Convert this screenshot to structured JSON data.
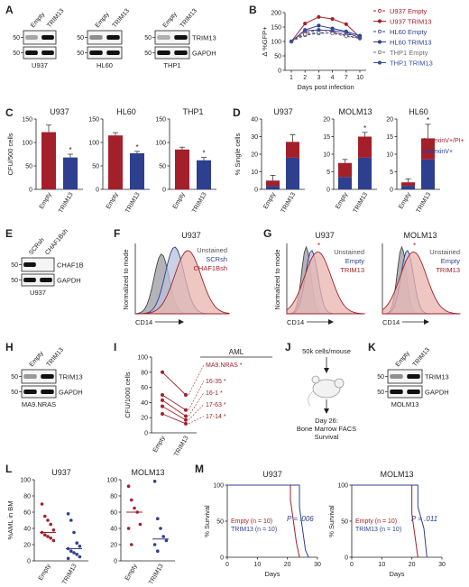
{
  "panel_letters": [
    "A",
    "B",
    "C",
    "D",
    "E",
    "F",
    "G",
    "H",
    "I",
    "J",
    "K",
    "L",
    "M"
  ],
  "colors": {
    "red": "#a3202a",
    "blue": "#2e3f8f",
    "gray": "#6e6e6e",
    "fill_red": "#e8b4ae",
    "fill_blue": "#b9c2dc",
    "fill_gray": "#9a9ba0"
  },
  "panel_a": {
    "blots": [
      {
        "cell_line": "U937",
        "lanes": [
          "Empty",
          "TRIM13"
        ],
        "markers": [
          "50",
          "50"
        ]
      },
      {
        "cell_line": "HL60",
        "lanes": [
          "Empty",
          "TRIM13"
        ],
        "markers": [
          "50",
          "50"
        ]
      },
      {
        "cell_line": "THP1",
        "lanes": [
          "Empty",
          "TRIM13"
        ],
        "markers": [
          "50",
          "50"
        ]
      }
    ],
    "proteins": [
      "TRIM13",
      "GAPDH"
    ]
  },
  "panel_e": {
    "cell_line": "U937",
    "lanes": [
      "SCRsh",
      "CHAF1Bsh"
    ],
    "markers": [
      "50",
      "50"
    ],
    "proteins": [
      "CHAF1B",
      "GAPDH"
    ]
  },
  "panel_h": {
    "cell_line": "MA9.NRAS",
    "lanes": [
      "Empty",
      "TRIM13"
    ],
    "markers": [
      "50",
      "50"
    ],
    "proteins": [
      "TRIM13",
      "GAPDH"
    ]
  },
  "panel_k": {
    "cell_line": "MOLM13",
    "lanes": [
      "Empty",
      "TRIM13"
    ],
    "markers": [
      "50",
      "50"
    ],
    "proteins": [
      "TRIM13",
      "GAPDH"
    ]
  },
  "panel_f": {
    "title": "U937",
    "xlabel": "CD14",
    "ylabel": "Normalized to mode",
    "legend": [
      "Unstained",
      "SCRsh",
      "CHAF1Bsh"
    ]
  },
  "panel_g": {
    "titles": [
      "U937",
      "MOLM13"
    ],
    "xlabel": "CD14",
    "ylabel": "Normalized to mode",
    "legend": [
      "Unstained",
      "Empty",
      "TRIM13"
    ],
    "star": "*"
  },
  "panel_j": {
    "text_top": "50k cells/mouse",
    "text_bottom": [
      "Day 26:",
      "Bone Marrow FACS",
      "Survival"
    ]
  },
  "chart_data": [
    {
      "panel": "B",
      "type": "line",
      "x": [
        "1",
        "2",
        "3",
        "4",
        "7",
        "10"
      ],
      "xlabel": "Days post infection",
      "ylabel": "Δ %GFP+",
      "ylim": [
        0,
        200
      ],
      "yticks": [
        "0",
        "50",
        "100",
        "150",
        "200"
      ],
      "legend_position": "right",
      "series": [
        {
          "name": "U937 Empty",
          "color": "#a3202a",
          "dashed": true,
          "values": [
            100,
            130,
            140,
            135,
            120,
            112
          ]
        },
        {
          "name": "U937 TRIM13",
          "color": "#a3202a",
          "dashed": false,
          "values": [
            100,
            162,
            185,
            178,
            160,
            115
          ]
        },
        {
          "name": "HL60 Empty",
          "color": "#2e3f8f",
          "dashed": true,
          "values": [
            100,
            122,
            128,
            130,
            125,
            118
          ]
        },
        {
          "name": "HL60 TRIM13",
          "color": "#2e3f8f",
          "dashed": false,
          "values": [
            100,
            140,
            155,
            145,
            135,
            120
          ]
        },
        {
          "name": "THP1 Empty",
          "color": "#6e6e6e",
          "dashed": true,
          "values": [
            100,
            125,
            132,
            128,
            118,
            110
          ]
        },
        {
          "name": "THP1 TRIM13",
          "color": "#3a4fa0",
          "dashed": false,
          "values": [
            100,
            138,
            140,
            138,
            132,
            112
          ]
        }
      ]
    },
    {
      "panel": "C",
      "type": "bar",
      "ylabel": "CFU/500 cells",
      "ylim": [
        0,
        150
      ],
      "yticks": [
        "0",
        "50",
        "100",
        "150"
      ],
      "subplots": [
        {
          "title": "U937",
          "categories": [
            "Empty",
            "TRIM13"
          ],
          "values": [
            122,
            68
          ],
          "err": [
            15,
            7
          ],
          "star": "*"
        },
        {
          "title": "HL60",
          "categories": [
            "Empty",
            "TRIM13"
          ],
          "values": [
            115,
            77
          ],
          "err": [
            6,
            4
          ],
          "star": "*"
        },
        {
          "title": "THP1",
          "categories": [
            "Empty",
            "TRIM13"
          ],
          "values": [
            85,
            62
          ],
          "err": [
            5,
            6
          ],
          "star": "*"
        }
      ]
    },
    {
      "panel": "D",
      "type": "bar",
      "stacked": true,
      "ylabel": "% Single cells",
      "legend": [
        "AnnexinV+/PI+",
        "AnnexinV+"
      ],
      "subplots": [
        {
          "title": "U937",
          "ylim": [
            0,
            40
          ],
          "yticks": [
            "0",
            "10",
            "20",
            "30",
            "40"
          ],
          "categories": [
            "Empty",
            "TRIM13"
          ],
          "annexin_pi": [
            3,
            9
          ],
          "annexin": [
            2,
            18
          ],
          "err": [
            3,
            4
          ],
          "star": ""
        },
        {
          "title": "MOLM13",
          "ylim": [
            0,
            20
          ],
          "yticks": [
            "0",
            "5",
            "10",
            "15",
            "20"
          ],
          "categories": [
            "Empty",
            "TRIM13"
          ],
          "annexin_pi": [
            4,
            6
          ],
          "annexin": [
            3.5,
            9
          ],
          "err": [
            1,
            1.2
          ],
          "star": "*"
        },
        {
          "title": "HL60",
          "ylim": [
            0,
            20
          ],
          "yticks": [
            "0",
            "5",
            "10",
            "15",
            "20"
          ],
          "categories": [
            "Empty",
            "TRIM13"
          ],
          "annexin_pi": [
            1,
            6
          ],
          "annexin": [
            1,
            8.5
          ],
          "err": [
            1,
            4
          ],
          "star": "*"
        }
      ]
    },
    {
      "panel": "I",
      "type": "line",
      "ylabel": "CFU/1000 cells",
      "ylim": [
        0,
        100
      ],
      "yticks": [
        "0",
        "20",
        "40",
        "60",
        "80",
        "100"
      ],
      "x": [
        "Empty",
        "TRIM13"
      ],
      "legend_title": "AML",
      "series": [
        {
          "name": "MA9.NRAS",
          "values": [
            80,
            50
          ],
          "star": "*"
        },
        {
          "name": "16-35",
          "values": [
            50,
            30
          ],
          "star": "*"
        },
        {
          "name": "16-1",
          "values": [
            43,
            22
          ],
          "star": "*"
        },
        {
          "name": "17-63",
          "values": [
            35,
            17
          ],
          "star": "*"
        },
        {
          "name": "17-14",
          "values": [
            25,
            12
          ],
          "star": "*"
        }
      ]
    },
    {
      "panel": "L",
      "type": "scatter",
      "ylabel": "%AML in BM",
      "ylim": [
        0,
        100
      ],
      "yticks": [
        "0",
        "20",
        "40",
        "60",
        "80",
        "100"
      ],
      "subplots": [
        {
          "title": "U937",
          "categories": [
            "Empty",
            "TRIM13"
          ],
          "points": [
            [
              70,
              55,
              50,
              45,
              38,
              35,
              32,
              30,
              28,
              25
            ],
            [
              58,
              50,
              35,
              22,
              18,
              15,
              12,
              10,
              8,
              5,
              3
            ]
          ],
          "means": [
            35,
            15
          ]
        },
        {
          "title": "MOLM13",
          "categories": [
            "Empty",
            "TRIM13"
          ],
          "points": [
            [
              92,
              75,
              65,
              60,
              45,
              40,
              20
            ],
            [
              98,
              52,
              40,
              30,
              25,
              20,
              12
            ]
          ],
          "means": [
            60,
            27
          ]
        }
      ]
    },
    {
      "panel": "M",
      "type": "line",
      "step": true,
      "xlabel": "Days",
      "ylabel": "% Survival",
      "xlim": [
        0,
        30
      ],
      "xticks": [
        "0",
        "10",
        "20",
        "30"
      ],
      "ylim": [
        0,
        100
      ],
      "yticks": [
        "0",
        "50",
        "100"
      ],
      "subplots": [
        {
          "title": "U937",
          "pvalue": "P = .006",
          "series": [
            {
              "name": "Empty (n = 10)",
              "color": "#a3202a",
              "steps": [
                [
                  0,
                  100
                ],
                [
                  21,
                  100
                ],
                [
                  21,
                  80
                ],
                [
                  22,
                  50
                ],
                [
                  23,
                  20
                ],
                [
                  24,
                  0
                ]
              ]
            },
            {
              "name": "TRIM13 (n = 10)",
              "color": "#2e3f8f",
              "steps": [
                [
                  0,
                  100
                ],
                [
                  24,
                  100
                ],
                [
                  24,
                  70
                ],
                [
                  25,
                  40
                ],
                [
                  26,
                  10
                ],
                [
                  27,
                  0
                ]
              ]
            }
          ]
        },
        {
          "title": "MOLM13",
          "pvalue": "P = .011",
          "series": [
            {
              "name": "Empty (n = 10)",
              "color": "#a3202a",
              "steps": [
                [
                  0,
                  100
                ],
                [
                  20,
                  100
                ],
                [
                  20,
                  60
                ],
                [
                  21,
                  30
                ],
                [
                  22,
                  0
                ]
              ]
            },
            {
              "name": "TRIM13 (n = 10)",
              "color": "#2e3f8f",
              "steps": [
                [
                  0,
                  100
                ],
                [
                  22,
                  100
                ],
                [
                  22,
                  70
                ],
                [
                  24,
                  40
                ],
                [
                  25,
                  0
                ]
              ]
            }
          ]
        }
      ]
    }
  ]
}
